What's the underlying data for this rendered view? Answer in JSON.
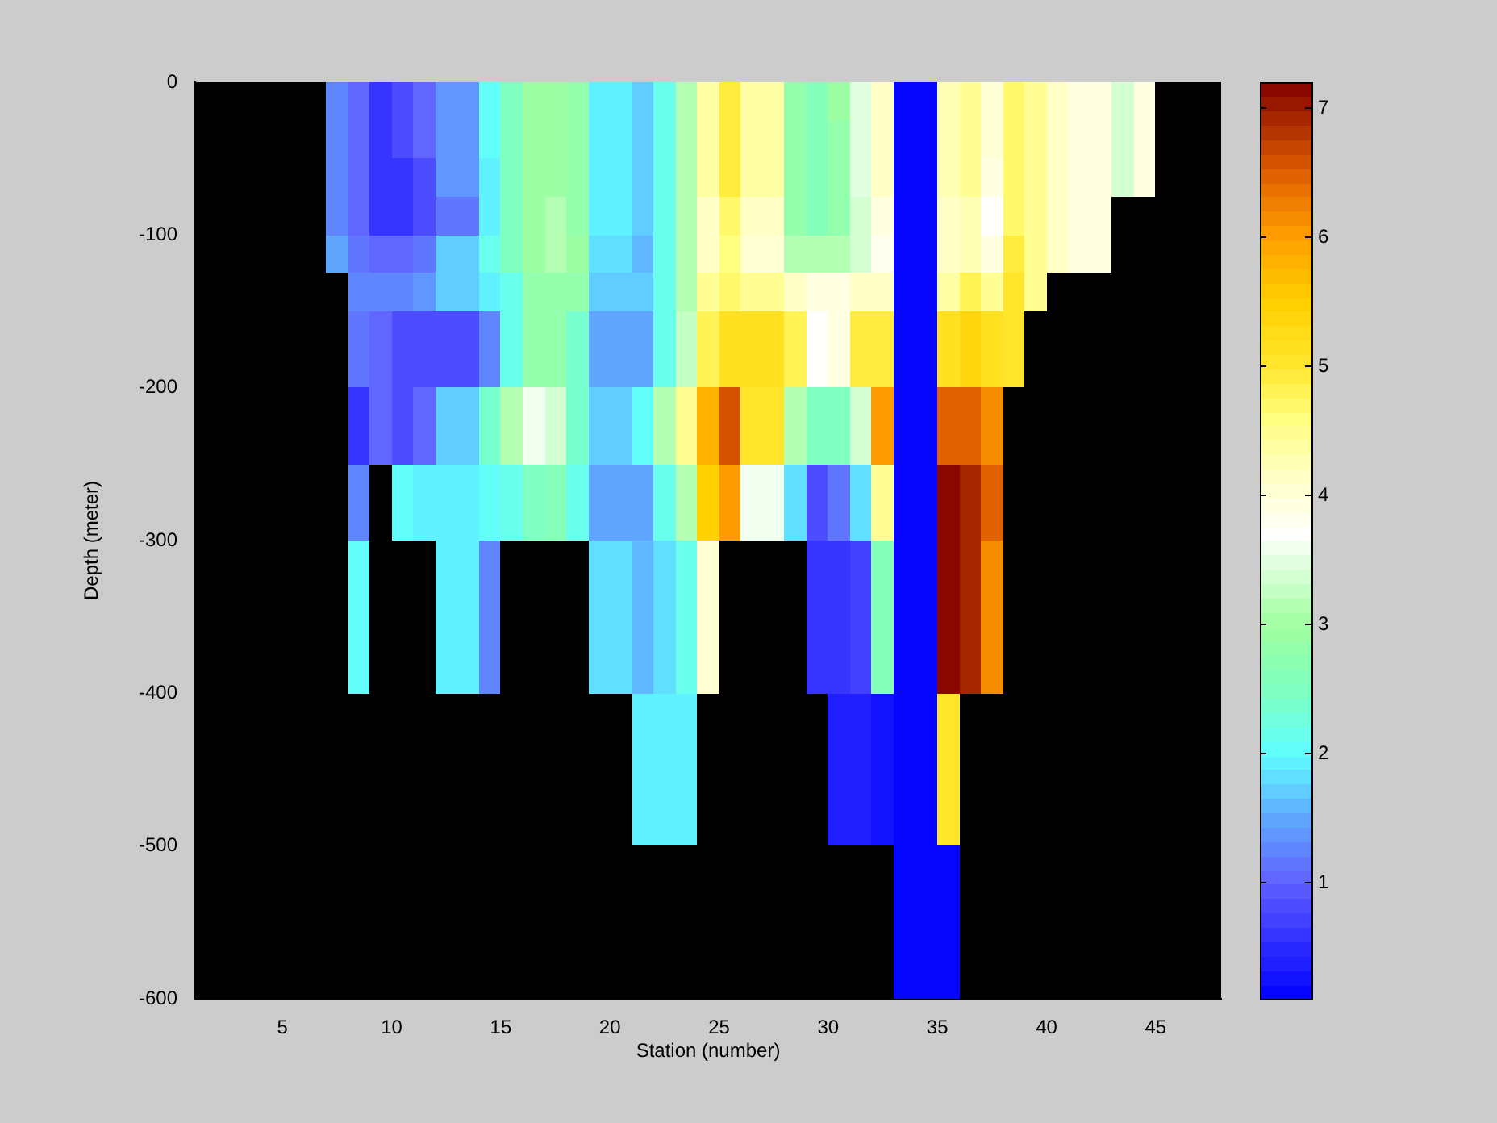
{
  "chart_data": {
    "type": "heatmap",
    "xlabel": "Station (number)",
    "ylabel": "Depth (meter)",
    "x": [
      7.5,
      8.5,
      9.5,
      10.5,
      11.5,
      12.5,
      13.5,
      14.5,
      15.5,
      16.5,
      17.5,
      18.5,
      19.5,
      20.5,
      21.5,
      22.5,
      23.5,
      24.5,
      25.5,
      26.5,
      27.5,
      28.5,
      29.5,
      30.5,
      31.5,
      32.5,
      33.5,
      34.5,
      35.5,
      36.5,
      37.5,
      38.5,
      39.5,
      40.5,
      41.5,
      42.5,
      43.5,
      44.5
    ],
    "cells": [
      [
        1.3,
        1.0,
        0.6,
        0.8,
        1.0,
        1.4,
        1.4,
        2.0,
        2.5,
        2.9,
        2.9,
        2.8,
        1.9,
        1.9,
        1.7,
        2.1,
        3.2,
        4.4,
        4.9,
        4.4,
        4.4,
        2.8,
        2.6,
        2.9,
        3.5,
        4.2,
        0.1,
        0.1,
        4.3,
        4.5,
        4.0,
        4.7,
        4.5,
        4.2,
        3.9,
        3.9,
        3.4,
        3.9
      ],
      [
        1.3,
        1.0,
        0.6,
        0.8,
        1.0,
        1.4,
        1.4,
        2.0,
        2.5,
        2.9,
        2.9,
        2.8,
        1.9,
        1.9,
        1.7,
        2.1,
        3.2,
        4.4,
        4.9,
        4.4,
        4.4,
        2.8,
        2.6,
        2.8,
        3.5,
        4.2,
        0.1,
        0.1,
        4.3,
        4.5,
        4.0,
        4.7,
        4.5,
        4.2,
        3.9,
        3.9,
        3.4,
        3.9
      ],
      [
        1.3,
        1.0,
        0.6,
        0.6,
        0.8,
        1.4,
        1.4,
        1.9,
        2.5,
        2.9,
        2.9,
        2.8,
        1.9,
        1.9,
        1.7,
        2.1,
        3.2,
        4.4,
        4.9,
        4.4,
        4.4,
        2.8,
        2.6,
        2.8,
        3.5,
        4.2,
        0.1,
        0.1,
        4.3,
        4.5,
        3.9,
        4.7,
        4.5,
        4.2,
        3.9,
        3.9,
        3.4,
        3.9
      ],
      [
        1.3,
        1.0,
        0.6,
        0.6,
        0.8,
        1.2,
        1.2,
        1.9,
        2.5,
        2.9,
        3.1,
        2.8,
        1.9,
        1.9,
        1.7,
        2.1,
        3.2,
        4.1,
        4.7,
        4.1,
        4.1,
        2.8,
        2.6,
        2.8,
        3.4,
        3.9,
        0.1,
        0.1,
        4.1,
        4.3,
        3.7,
        4.7,
        4.5,
        4.2,
        3.9,
        3.9,
        null,
        null
      ],
      [
        1.5,
        1.1,
        1.0,
        1.0,
        1.1,
        1.7,
        1.7,
        2.1,
        2.5,
        2.9,
        3.1,
        2.9,
        1.8,
        1.8,
        1.6,
        2.1,
        3.2,
        4.2,
        4.6,
        4.0,
        4.0,
        3.2,
        3.1,
        3.1,
        3.4,
        3.8,
        0.1,
        0.1,
        4.1,
        4.3,
        3.9,
        4.9,
        4.5,
        4.2,
        3.9,
        3.9,
        null,
        null
      ],
      [
        null,
        1.3,
        1.3,
        1.3,
        1.4,
        1.7,
        1.7,
        1.9,
        2.1,
        2.8,
        2.8,
        2.8,
        1.7,
        1.7,
        1.7,
        2.1,
        3.2,
        4.5,
        4.7,
        4.5,
        4.5,
        4.1,
        3.9,
        3.9,
        4.2,
        4.2,
        0.1,
        0.1,
        4.4,
        4.8,
        4.5,
        5.0,
        4.5,
        null,
        null,
        null,
        null,
        null
      ],
      [
        null,
        1.2,
        1.0,
        0.8,
        0.8,
        0.8,
        0.8,
        1.3,
        2.2,
        2.8,
        2.8,
        2.4,
        1.5,
        1.5,
        1.5,
        2.1,
        3.3,
        4.8,
        5.1,
        5.1,
        5.1,
        4.8,
        3.7,
        3.9,
        4.9,
        4.9,
        0.1,
        0.1,
        5.1,
        5.4,
        5.2,
        5.0,
        null,
        null,
        null,
        null,
        null,
        null
      ],
      [
        null,
        1.2,
        1.0,
        0.8,
        0.8,
        0.8,
        0.8,
        1.3,
        2.2,
        2.8,
        2.8,
        2.4,
        1.5,
        1.5,
        1.5,
        2.1,
        3.3,
        4.8,
        5.1,
        5.1,
        5.1,
        4.8,
        3.7,
        3.9,
        4.9,
        4.9,
        0.1,
        0.1,
        5.1,
        5.4,
        5.2,
        5.0,
        null,
        null,
        null,
        null,
        null,
        null
      ],
      [
        null,
        0.6,
        1.0,
        0.8,
        1.0,
        1.7,
        1.7,
        2.4,
        3.1,
        3.6,
        3.4,
        2.4,
        1.7,
        1.7,
        2.0,
        3.1,
        4.5,
        5.8,
        6.6,
        5.0,
        5.0,
        3.2,
        2.5,
        2.5,
        3.4,
        6.0,
        0.1,
        0.1,
        6.5,
        6.5,
        6.2,
        null,
        null,
        null,
        null,
        null,
        null,
        null
      ],
      [
        null,
        0.6,
        1.0,
        0.8,
        1.0,
        1.7,
        1.7,
        2.4,
        3.1,
        3.6,
        3.4,
        2.4,
        1.7,
        1.7,
        2.0,
        3.1,
        4.5,
        5.8,
        6.6,
        5.0,
        5.0,
        3.2,
        2.5,
        2.5,
        3.4,
        6.0,
        0.1,
        0.1,
        6.5,
        6.5,
        6.2,
        null,
        null,
        null,
        null,
        null,
        null,
        null
      ],
      [
        null,
        1.3,
        null,
        2.0,
        1.9,
        1.9,
        1.9,
        2.0,
        2.2,
        2.5,
        2.6,
        2.2,
        1.5,
        1.5,
        1.5,
        2.2,
        3.2,
        5.5,
        6.0,
        3.6,
        3.6,
        1.8,
        0.8,
        1.2,
        1.8,
        4.5,
        0.1,
        0.1,
        7.1,
        6.9,
        6.5,
        null,
        null,
        null,
        null,
        null,
        null,
        null
      ],
      [
        null,
        1.3,
        null,
        2.0,
        1.9,
        1.9,
        1.9,
        2.0,
        2.2,
        2.5,
        2.6,
        2.2,
        1.5,
        1.5,
        1.5,
        2.2,
        3.2,
        5.5,
        6.0,
        3.6,
        3.6,
        1.8,
        0.8,
        1.2,
        1.8,
        4.5,
        0.1,
        0.1,
        7.1,
        6.9,
        6.5,
        null,
        null,
        null,
        null,
        null,
        null,
        null
      ],
      [
        null,
        2.0,
        null,
        null,
        null,
        1.9,
        1.9,
        1.3,
        null,
        null,
        null,
        null,
        1.8,
        1.8,
        1.6,
        1.8,
        2.2,
        4.0,
        null,
        null,
        null,
        null,
        0.6,
        0.6,
        0.7,
        2.6,
        0.1,
        0.1,
        7.1,
        6.9,
        6.2,
        null,
        null,
        null,
        null,
        null,
        null,
        null
      ],
      [
        null,
        2.0,
        null,
        null,
        null,
        1.9,
        1.9,
        1.3,
        null,
        null,
        null,
        null,
        1.8,
        1.8,
        1.6,
        1.8,
        2.2,
        4.0,
        null,
        null,
        null,
        null,
        0.6,
        0.6,
        0.7,
        2.6,
        0.1,
        0.1,
        7.1,
        6.9,
        6.2,
        null,
        null,
        null,
        null,
        null,
        null,
        null
      ],
      [
        null,
        2.0,
        null,
        null,
        null,
        1.9,
        1.9,
        1.3,
        null,
        null,
        null,
        null,
        1.8,
        1.8,
        1.6,
        1.8,
        2.2,
        4.0,
        null,
        null,
        null,
        null,
        0.6,
        0.6,
        0.7,
        2.6,
        0.1,
        0.1,
        7.1,
        6.9,
        6.2,
        null,
        null,
        null,
        null,
        null,
        null,
        null
      ],
      [
        null,
        2.0,
        null,
        null,
        null,
        1.9,
        1.9,
        1.3,
        null,
        null,
        null,
        null,
        1.8,
        1.8,
        1.6,
        1.8,
        2.2,
        4.0,
        null,
        null,
        null,
        null,
        0.6,
        0.6,
        0.7,
        2.6,
        0.1,
        0.1,
        7.1,
        6.9,
        6.2,
        null,
        null,
        null,
        null,
        null,
        null,
        null
      ],
      [
        null,
        null,
        null,
        null,
        null,
        null,
        null,
        null,
        null,
        null,
        null,
        null,
        null,
        null,
        1.9,
        1.9,
        1.9,
        null,
        null,
        null,
        null,
        null,
        null,
        0.4,
        0.4,
        0.3,
        0.1,
        0.1,
        5.0,
        null,
        null,
        null,
        null,
        null,
        null,
        null,
        null,
        null
      ],
      [
        null,
        null,
        null,
        null,
        null,
        null,
        null,
        null,
        null,
        null,
        null,
        null,
        null,
        null,
        1.9,
        1.9,
        1.9,
        null,
        null,
        null,
        null,
        null,
        null,
        0.4,
        0.4,
        0.3,
        0.1,
        0.1,
        5.0,
        null,
        null,
        null,
        null,
        null,
        null,
        null,
        null,
        null
      ],
      [
        null,
        null,
        null,
        null,
        null,
        null,
        null,
        null,
        null,
        null,
        null,
        null,
        null,
        null,
        1.9,
        1.9,
        1.9,
        null,
        null,
        null,
        null,
        null,
        null,
        0.4,
        0.4,
        0.3,
        0.1,
        0.1,
        5.0,
        null,
        null,
        null,
        null,
        null,
        null,
        null,
        null,
        null
      ],
      [
        null,
        null,
        null,
        null,
        null,
        null,
        null,
        null,
        null,
        null,
        null,
        null,
        null,
        null,
        1.9,
        1.9,
        1.9,
        null,
        null,
        null,
        null,
        null,
        null,
        0.4,
        0.4,
        0.3,
        0.1,
        0.1,
        5.0,
        null,
        null,
        null,
        null,
        null,
        null,
        null,
        null,
        null
      ],
      [
        null,
        null,
        null,
        null,
        null,
        null,
        null,
        null,
        null,
        null,
        null,
        null,
        null,
        null,
        null,
        null,
        null,
        null,
        null,
        null,
        null,
        null,
        null,
        null,
        null,
        null,
        0.1,
        0.1,
        0.1,
        null,
        null,
        null,
        null,
        null,
        null,
        null,
        null,
        null
      ],
      [
        null,
        null,
        null,
        null,
        null,
        null,
        null,
        null,
        null,
        null,
        null,
        null,
        null,
        null,
        null,
        null,
        null,
        null,
        null,
        null,
        null,
        null,
        null,
        null,
        null,
        null,
        0.1,
        0.1,
        0.1,
        null,
        null,
        null,
        null,
        null,
        null,
        null,
        null,
        null
      ],
      [
        null,
        null,
        null,
        null,
        null,
        null,
        null,
        null,
        null,
        null,
        null,
        null,
        null,
        null,
        null,
        null,
        null,
        null,
        null,
        null,
        null,
        null,
        null,
        null,
        null,
        null,
        0.1,
        0.1,
        0.1,
        null,
        null,
        null,
        null,
        null,
        null,
        null,
        null,
        null
      ],
      [
        null,
        null,
        null,
        null,
        null,
        null,
        null,
        null,
        null,
        null,
        null,
        null,
        null,
        null,
        null,
        null,
        null,
        null,
        null,
        null,
        null,
        null,
        null,
        null,
        null,
        null,
        0.1,
        0.1,
        0.1,
        null,
        null,
        null,
        null,
        null,
        null,
        null,
        null,
        null
      ]
    ],
    "xlim": [
      1,
      48
    ],
    "xticks": [
      5,
      10,
      15,
      20,
      25,
      30,
      35,
      40,
      45
    ],
    "ylim": [
      -600,
      0
    ],
    "yticks": [
      -600,
      -500,
      -400,
      -300,
      -200,
      -100,
      0
    ],
    "clim": [
      0.1,
      7.2
    ],
    "cticks": [
      1,
      2,
      3,
      4,
      5,
      6,
      7
    ]
  }
}
